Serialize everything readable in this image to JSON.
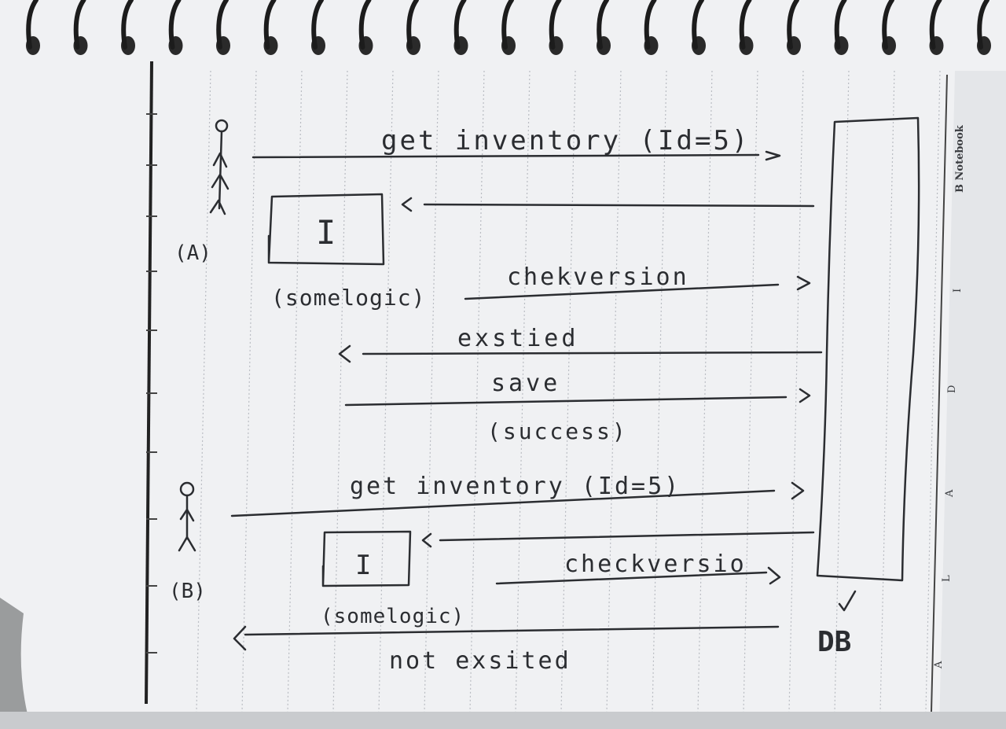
{
  "diagram": {
    "actor_a_label": "(A)",
    "actor_b_label": "(B)",
    "db_label": "DB",
    "lock_a_label": "I",
    "lock_b_label": "I",
    "messages": {
      "a_get_inventory": "get inventory (Id=5)",
      "a_check_version": "chekversion",
      "a_some_logic": "(somelogic)",
      "db_existed": "exstied",
      "a_save": "save",
      "db_success": "(success)",
      "b_get_inventory": "get inventory (Id=5)",
      "b_check_version": "checkversio",
      "b_some_logic": "(somelogic)",
      "db_not_existed": "not exsited"
    }
  },
  "notebook": {
    "brand": "B Notebook",
    "margin_letters": [
      "I",
      "D",
      "A",
      "L",
      "A"
    ]
  }
}
